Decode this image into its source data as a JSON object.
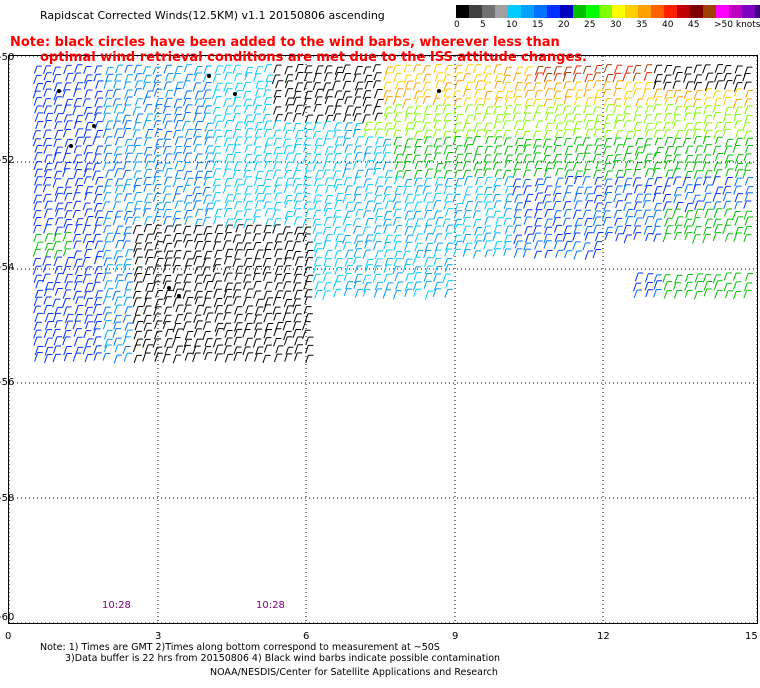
{
  "header": {
    "title": "Rapidscat Corrected Winds(12.5KM) v1.1 20150806 ascending",
    "note_line1": "Note: black circles have been added to the wind barbs, wherever less than",
    "note_line2": "optimal wind retrieval conditions are met due to the ISS attitude changes."
  },
  "legend": {
    "labels": [
      "0",
      "5",
      "10",
      "15",
      "20",
      "25",
      "30",
      "35",
      "40",
      "45",
      ">50 knots"
    ],
    "colors": [
      "#000000",
      "#404040",
      "#707070",
      "#a0a0a0",
      "#00ccff",
      "#00a0ff",
      "#0070ff",
      "#0030ff",
      "#0000c0",
      "#00c000",
      "#00ff00",
      "#80ff00",
      "#ffff00",
      "#ffd000",
      "#ffa000",
      "#ff6000",
      "#ff2000",
      "#c00000",
      "#800000",
      "#a04000",
      "#ff00ff",
      "#c000c0",
      "#8000c0",
      "#400080"
    ]
  },
  "map_data": {
    "lat_labels": [
      "-50",
      "-52",
      "-54",
      "-56",
      "-58",
      "-60"
    ],
    "lon_labels": [
      "0",
      "3",
      "6",
      "9",
      "12",
      "15"
    ],
    "lat_range": [
      -60,
      -50
    ],
    "lon_range": [
      0,
      15
    ],
    "time_labels": [
      "10:28",
      "10:28"
    ]
  },
  "footer": {
    "line1": "Note: 1) Times are GMT 2)Times along bottom correspond to measurement at ~50S",
    "line2": "3)Data buffer is 22 hrs from 20150806 4) Black wind barbs indicate possible contamination",
    "credit": "NOAA/NESDIS/Center for Satellite Applications and Research"
  }
}
